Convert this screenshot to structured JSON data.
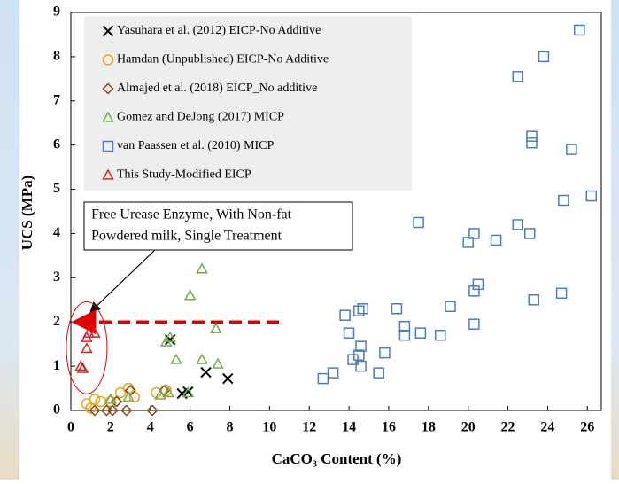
{
  "chart_data": {
    "type": "scatter",
    "xlabel": "CaCO₃ Content (%)",
    "ylabel": "UCS (MPa)",
    "annotation": [
      "Free Urease Enzyme, With Non-fat",
      "Powdered milk, Single Treatment"
    ],
    "hline": 2,
    "xlim": [
      0,
      26.7
    ],
    "xticks": [
      0,
      2,
      4,
      6,
      8,
      10,
      12,
      14,
      16,
      18,
      20,
      22,
      24,
      26
    ],
    "ylim": [
      0,
      9
    ],
    "yticks": [
      0,
      1,
      2,
      3,
      4,
      5,
      6,
      7,
      8,
      9
    ],
    "series": [
      {
        "name": "Yasuhara et al. (2012) EICP-No Additive",
        "color": "#000000",
        "marker": "x",
        "x": [
          5.0,
          5.9,
          5.6,
          6.8,
          7.9
        ],
        "values": [
          1.6,
          0.42,
          0.38,
          0.86,
          0.72
        ]
      },
      {
        "name": "Hamdan (Unpublished) EICP-No Additive",
        "color": "#e8a317",
        "marker": "circle",
        "x": [
          0.8,
          1.0,
          1.2,
          1.5,
          2.0,
          2.5,
          2.9,
          3.2,
          4.3,
          4.8
        ],
        "values": [
          0.15,
          0.05,
          0.25,
          0.2,
          0.2,
          0.4,
          0.5,
          0.3,
          0.4,
          0.45
        ]
      },
      {
        "name": "Almajed et al. (2018) EICP_No additive",
        "color": "#8b4513",
        "marker": "diamond",
        "x": [
          1.2,
          1.8,
          2.1,
          2.3,
          2.8,
          3.0,
          4.1,
          4.7
        ],
        "values": [
          0.0,
          0.0,
          0.0,
          0.2,
          0.0,
          0.45,
          0.0,
          0.45
        ]
      },
      {
        "name": "Gomez and DeJong (2017) MICP",
        "color": "#70ad47",
        "marker": "triangle",
        "x": [
          4.8,
          5.0,
          5.3,
          6.0,
          6.6,
          6.6,
          7.3,
          7.4,
          5.9,
          4.9,
          4.5,
          2.0,
          2.9
        ],
        "values": [
          1.55,
          1.65,
          1.15,
          2.6,
          3.2,
          1.15,
          1.85,
          1.05,
          0.4,
          0.4,
          0.35,
          0.25,
          0.3
        ]
      },
      {
        "name": "van Paassen et al. (2010) MICP",
        "color": "#4a7ebb",
        "marker": "square",
        "x": [
          25.6,
          23.8,
          22.5,
          23.2,
          23.2,
          25.2,
          26.2,
          24.8,
          17.5,
          22.5,
          23.1,
          20.3,
          21.4,
          20.0,
          20.5,
          20.3,
          24.7,
          23.3,
          16.4,
          19.1,
          14.7,
          14.5,
          13.8,
          16.8,
          17.6,
          16.8,
          18.6,
          14.0,
          20.3,
          14.6,
          15.8,
          14.5,
          14.2,
          14.6,
          15.5,
          13.2,
          12.7
        ],
        "values": [
          8.6,
          8.0,
          7.55,
          6.2,
          6.05,
          5.9,
          4.85,
          4.75,
          4.25,
          4.2,
          4.0,
          4.0,
          3.85,
          3.8,
          2.85,
          2.7,
          2.65,
          2.5,
          2.3,
          2.35,
          2.3,
          2.25,
          2.15,
          1.9,
          1.75,
          1.7,
          1.7,
          1.75,
          1.95,
          1.45,
          1.3,
          1.25,
          1.15,
          1.0,
          0.85,
          0.85,
          0.72
        ]
      },
      {
        "name": "This Study-Modified EICP",
        "color": "#e02020",
        "marker": "triangle",
        "x": [
          0.5,
          0.6,
          0.8,
          0.9,
          1.2,
          0.8
        ],
        "values": [
          1.0,
          0.95,
          1.4,
          1.75,
          1.75,
          1.65
        ]
      }
    ]
  }
}
